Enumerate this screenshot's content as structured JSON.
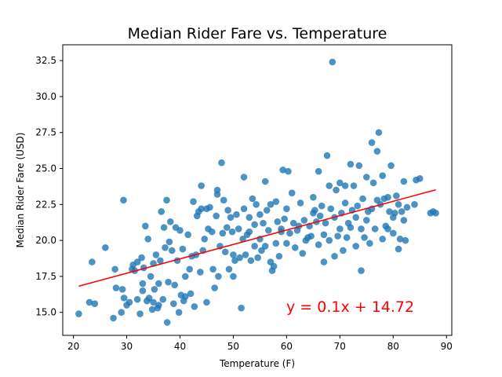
{
  "chart_data": {
    "type": "scatter",
    "title": "Median Rider Fare vs. Temperature",
    "xlabel": "Temperature (F)",
    "ylabel": "Median Rider Fare (USD)",
    "xlim": [
      18,
      91
    ],
    "ylim": [
      13.4,
      33.6
    ],
    "xticks": [
      20,
      30,
      40,
      50,
      60,
      70,
      80,
      90
    ],
    "yticks": [
      15.0,
      17.5,
      20.0,
      22.5,
      25.0,
      27.5,
      30.0,
      32.5
    ],
    "grid": false,
    "point_color": "#1f77b4",
    "line_color": "#ff0000",
    "regression": {
      "slope": 0.1,
      "intercept": 14.72,
      "x_range": [
        21,
        88
      ],
      "equation": "y = 0.1x + 14.72"
    },
    "points": [
      [
        21,
        14.9
      ],
      [
        23,
        15.7
      ],
      [
        23.5,
        18.5
      ],
      [
        24,
        15.6
      ],
      [
        26,
        19.5
      ],
      [
        27.5,
        14.6
      ],
      [
        27.8,
        18.0
      ],
      [
        28,
        16.7
      ],
      [
        29,
        15
      ],
      [
        29.2,
        16.6
      ],
      [
        29.4,
        22.8
      ],
      [
        29.5,
        16.0
      ],
      [
        30,
        15.5
      ],
      [
        30.5,
        15.7
      ],
      [
        31,
        18.0
      ],
      [
        31.2,
        18.3
      ],
      [
        31.5,
        17.9
      ],
      [
        32,
        18.5
      ],
      [
        32,
        15.9
      ],
      [
        32.5,
        14.9
      ],
      [
        32.8,
        18.8
      ],
      [
        33,
        16.5
      ],
      [
        33,
        17
      ],
      [
        33.2,
        18.1
      ],
      [
        33.5,
        21.0
      ],
      [
        33.8,
        15.8
      ],
      [
        34,
        20.1
      ],
      [
        34.2,
        16.0
      ],
      [
        34.5,
        17.5
      ],
      [
        34.8,
        15.2
      ],
      [
        35,
        15.7
      ],
      [
        35,
        18.4
      ],
      [
        35.2,
        16.6
      ],
      [
        35.5,
        19.0
      ],
      [
        35.8,
        15.3
      ],
      [
        36,
        17.0
      ],
      [
        36,
        15.5
      ],
      [
        36.3,
        18.6
      ],
      [
        36.5,
        22.0
      ],
      [
        36.8,
        15.9
      ],
      [
        37,
        20.9
      ],
      [
        37.2,
        19.5
      ],
      [
        37.5,
        22.8
      ],
      [
        37.6,
        14.3
      ],
      [
        37.8,
        17.1
      ],
      [
        38,
        19.9
      ],
      [
        38.2,
        21.3
      ],
      [
        38.5,
        19.3
      ],
      [
        38.8,
        15.6
      ],
      [
        39,
        16.9
      ],
      [
        39.2,
        20.9
      ],
      [
        39.5,
        18.6
      ],
      [
        39.8,
        15
      ],
      [
        40,
        20.7
      ],
      [
        40.2,
        16.2
      ],
      [
        40.5,
        19.4
      ],
      [
        40.7,
        15.8
      ],
      [
        41,
        16.1
      ],
      [
        41,
        17.5
      ],
      [
        41.5,
        20.4
      ],
      [
        41.8,
        18.0
      ],
      [
        42,
        16.3
      ],
      [
        42.2,
        18.9
      ],
      [
        42.5,
        22.7
      ],
      [
        42.7,
        15.4
      ],
      [
        43,
        19.0
      ],
      [
        43.2,
        21.7
      ],
      [
        43.5,
        22.0
      ],
      [
        43.8,
        17.8
      ],
      [
        44,
        22.2
      ],
      [
        44,
        23.8
      ],
      [
        44.3,
        19.3
      ],
      [
        44.6,
        20.1
      ],
      [
        45,
        22.2
      ],
      [
        45,
        15.7
      ],
      [
        45.3,
        20.8
      ],
      [
        45.6,
        22.3
      ],
      [
        46,
        20.6
      ],
      [
        46.2,
        18.0
      ],
      [
        46.5,
        16.7
      ],
      [
        46.8,
        21.7
      ],
      [
        47,
        23.5
      ],
      [
        47,
        23.2
      ],
      [
        47.2,
        17.5
      ],
      [
        47.5,
        19.6
      ],
      [
        47.8,
        25.4
      ],
      [
        48,
        20.5
      ],
      [
        48.2,
        22.8
      ],
      [
        48.5,
        19.2
      ],
      [
        48.8,
        20.9
      ],
      [
        49,
        22.1
      ],
      [
        49.2,
        18.0
      ],
      [
        49.5,
        21.6
      ],
      [
        49.8,
        20.6
      ],
      [
        50,
        19.0
      ],
      [
        50,
        17.5
      ],
      [
        50.3,
        18.6
      ],
      [
        50.6,
        21.8
      ],
      [
        51,
        20.8
      ],
      [
        51.2,
        18.8
      ],
      [
        51.5,
        15.3
      ],
      [
        51.8,
        20.1
      ],
      [
        52,
        22.2
      ],
      [
        52,
        24.4
      ],
      [
        52.3,
        19.0
      ],
      [
        52.6,
        20.4
      ],
      [
        53,
        21.6
      ],
      [
        53,
        20.6
      ],
      [
        53.3,
        18.6
      ],
      [
        53.6,
        22.9
      ],
      [
        54,
        21.1
      ],
      [
        54,
        19.6
      ],
      [
        54.3,
        22.5
      ],
      [
        54.6,
        18.8
      ],
      [
        55,
        21.8
      ],
      [
        55,
        20.1
      ],
      [
        55.3,
        19.3
      ],
      [
        55.6,
        21.2
      ],
      [
        56,
        24.1
      ],
      [
        56,
        19.6
      ],
      [
        56.3,
        22.1
      ],
      [
        56.6,
        20.7
      ],
      [
        57,
        18.5
      ],
      [
        57,
        22.5
      ],
      [
        57.3,
        17.9
      ],
      [
        57.6,
        18.2
      ],
      [
        58,
        22.7
      ],
      [
        58,
        19.8
      ],
      [
        58.3,
        21.3
      ],
      [
        58.6,
        18.9
      ],
      [
        59,
        20.8
      ],
      [
        59,
        20.6
      ],
      [
        59.3,
        24.9
      ],
      [
        59.6,
        21.5
      ],
      [
        60,
        22.2
      ],
      [
        60,
        19.8
      ],
      [
        60.3,
        24.8
      ],
      [
        60.6,
        20.5
      ],
      [
        61,
        23.3
      ],
      [
        61.3,
        21.2
      ],
      [
        61.6,
        19.5
      ],
      [
        62,
        20.7
      ],
      [
        62.3,
        21.0
      ],
      [
        62.6,
        22.6
      ],
      [
        63,
        19.1
      ],
      [
        63.3,
        21.4
      ],
      [
        63.6,
        20.0
      ],
      [
        64,
        20.2
      ],
      [
        64.3,
        21.0
      ],
      [
        64.6,
        20.3
      ],
      [
        65,
        21.9
      ],
      [
        65,
        23.0
      ],
      [
        65.3,
        22.1
      ],
      [
        65.6,
        21.3
      ],
      [
        66,
        24.8
      ],
      [
        66,
        19.7
      ],
      [
        66.3,
        21.7
      ],
      [
        66.6,
        22.4
      ],
      [
        67,
        20.4
      ],
      [
        67,
        18.5
      ],
      [
        67.3,
        21.2
      ],
      [
        67.6,
        25.9
      ],
      [
        68,
        20.0
      ],
      [
        68,
        23.8
      ],
      [
        68.3,
        22.2
      ],
      [
        68.6,
        32.4
      ],
      [
        69,
        18.9
      ],
      [
        69,
        21.6
      ],
      [
        69.3,
        23.5
      ],
      [
        69.6,
        20.3
      ],
      [
        70,
        24.0
      ],
      [
        70,
        20.8
      ],
      [
        70.3,
        21.9
      ],
      [
        70.6,
        19.3
      ],
      [
        71,
        22.6
      ],
      [
        71,
        23.8
      ],
      [
        71.3,
        20.2
      ],
      [
        71.6,
        21.2
      ],
      [
        72,
        25.3
      ],
      [
        72,
        20.9
      ],
      [
        72.3,
        22.1
      ],
      [
        72.6,
        23.8
      ],
      [
        73,
        19.6
      ],
      [
        73,
        21.6
      ],
      [
        73.3,
        22.4
      ],
      [
        73.6,
        25.2
      ],
      [
        74,
        20.8
      ],
      [
        74,
        17.9
      ],
      [
        74.3,
        22.9
      ],
      [
        74.6,
        20.2
      ],
      [
        75,
        24.4
      ],
      [
        75,
        21.4
      ],
      [
        75.3,
        22.0
      ],
      [
        75.6,
        19.8
      ],
      [
        76,
        26.8
      ],
      [
        76,
        22.2
      ],
      [
        76.3,
        24.0
      ],
      [
        76.6,
        20.8
      ],
      [
        77,
        26.2
      ],
      [
        77,
        22.8
      ],
      [
        77.3,
        27.5
      ],
      [
        77.6,
        22.5
      ],
      [
        78,
        24.5
      ],
      [
        78,
        20.1
      ],
      [
        78.3,
        22.9
      ],
      [
        78.6,
        21.0
      ],
      [
        79,
        23.0
      ],
      [
        79,
        20.8
      ],
      [
        79.3,
        22.0
      ],
      [
        79.6,
        25.2
      ],
      [
        80,
        21.6
      ],
      [
        80,
        20.5
      ],
      [
        80.3,
        21.9
      ],
      [
        80.6,
        23.1
      ],
      [
        81,
        22.5
      ],
      [
        81,
        19.4
      ],
      [
        81.3,
        20.1
      ],
      [
        81.6,
        22.0
      ],
      [
        82,
        24.1
      ],
      [
        82,
        21.4
      ],
      [
        82.3,
        20.0
      ],
      [
        82.6,
        22.3
      ],
      [
        84,
        22.5
      ],
      [
        84.3,
        24.2
      ],
      [
        85,
        24.3
      ],
      [
        87,
        21.9
      ],
      [
        87.5,
        22.0
      ],
      [
        88,
        21.9
      ]
    ]
  }
}
